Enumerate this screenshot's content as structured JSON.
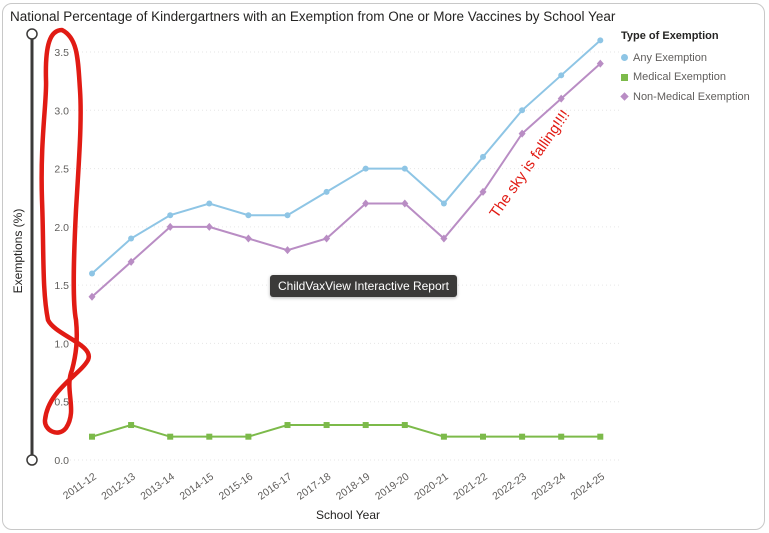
{
  "chart_data": {
    "type": "line",
    "title": "National Percentage of Kindergartners with an Exemption from One or More Vaccines by School Year",
    "xlabel": "School Year",
    "ylabel": "Exemptions (%)",
    "ylim": [
      0,
      3.6
    ],
    "yticks": [
      "0.0",
      "0.5",
      "1.0",
      "1.5",
      "2.0",
      "2.5",
      "3.0",
      "3.5"
    ],
    "grid": true,
    "legend_position": "top-right",
    "legend_title": "Type of Exemption",
    "categories": [
      "2011-12",
      "2012-13",
      "2013-14",
      "2014-15",
      "2015-16",
      "2016-17",
      "2017-18",
      "2018-19",
      "2019-20",
      "2020-21",
      "2021-22",
      "2022-23",
      "2023-24",
      "2024-25"
    ],
    "series": [
      {
        "name": "Any Exemption",
        "color": "#8ec5e5",
        "marker": "circle",
        "values": [
          1.6,
          1.9,
          2.1,
          2.2,
          2.1,
          2.1,
          2.3,
          2.5,
          2.5,
          2.2,
          2.6,
          3.0,
          3.3,
          3.6
        ]
      },
      {
        "name": "Medical Exemption",
        "color": "#7cba4a",
        "marker": "square",
        "values": [
          0.2,
          0.3,
          0.2,
          0.2,
          0.2,
          0.3,
          0.3,
          0.3,
          0.3,
          0.2,
          0.2,
          0.2,
          0.2,
          0.2
        ]
      },
      {
        "name": "Non-Medical Exemption",
        "color": "#b98dc4",
        "marker": "diamond",
        "values": [
          1.4,
          1.7,
          2.0,
          2.0,
          1.9,
          1.8,
          1.9,
          2.2,
          2.2,
          1.9,
          2.3,
          2.8,
          3.1,
          3.4
        ]
      }
    ],
    "tooltip": "ChildVaxView Interactive Report",
    "annotation": "The sky is falling!!!!"
  }
}
